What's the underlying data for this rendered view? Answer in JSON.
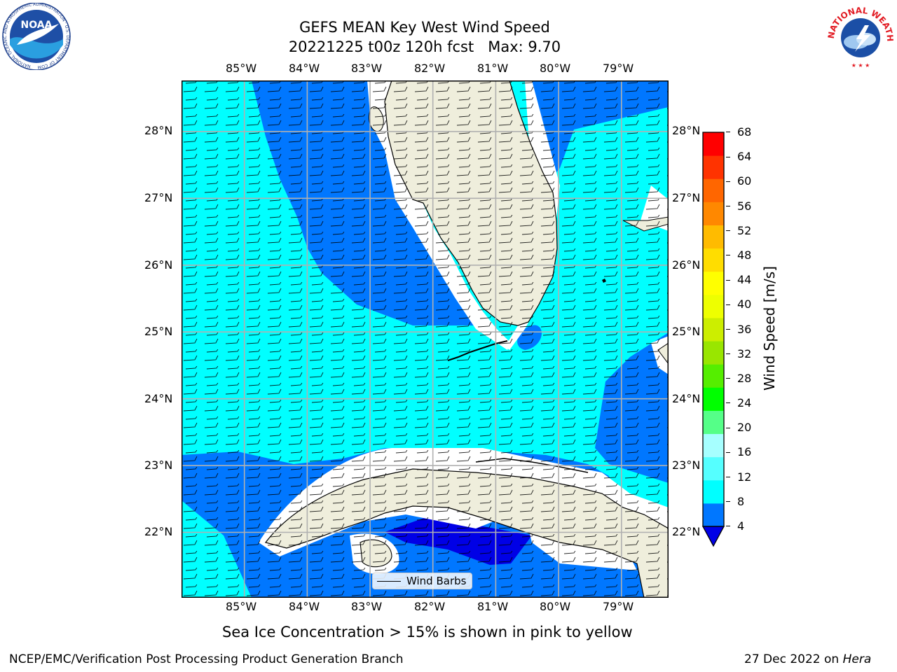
{
  "title": {
    "line1": "GEFS MEAN Key West Wind Speed",
    "line2": "20221225 t00z 120h fcst   Max: 9.70"
  },
  "map": {
    "lon_ticks": [
      "85°W",
      "84°W",
      "83°W",
      "82°W",
      "81°W",
      "80°W",
      "79°W"
    ],
    "lat_ticks": [
      "28°N",
      "27°N",
      "26°N",
      "25°N",
      "24°N",
      "23°N",
      "22°N"
    ],
    "lon_range": [
      -86.0,
      -78.25
    ],
    "lat_range": [
      21.1,
      28.8
    ],
    "legend_label": "Wind Barbs",
    "colors": {
      "land": "#efeedc",
      "band_4_8": "#0077ff",
      "band_8_12": "#00ffff",
      "below_4": "#0000e6",
      "grid": "#b0b0b0"
    }
  },
  "colorbar": {
    "label": "Wind Speed [m/s]",
    "ticks": [
      "68",
      "64",
      "60",
      "56",
      "52",
      "48",
      "44",
      "40",
      "36",
      "32",
      "28",
      "24",
      "20",
      "16",
      "12",
      "8",
      "4"
    ],
    "colors": [
      "#0077ff",
      "#00ffff",
      "#55ffff",
      "#a6ffff",
      "#55ff88",
      "#00ff00",
      "#55ee00",
      "#99e600",
      "#ccee00",
      "#eeff00",
      "#ffff00",
      "#ffdd00",
      "#ffbb00",
      "#ff8800",
      "#ff6600",
      "#ff3300",
      "#ff0000"
    ],
    "under_color": "#0000e6"
  },
  "caption": "Sea Ice Concentration > 15% is shown in pink to yellow",
  "footer": {
    "left": "NCEP/EMC/Verification Post Processing Product Generation Branch",
    "date": "27 Dec 2022 on",
    "machine": "Hera"
  },
  "logos": {
    "noaa_text": "NOAA",
    "noaa_ring": "NATIONAL OCEANIC AND ATMOSPHERIC ADMINISTRATION · U.S. DEPARTMENT OF COMMERCE",
    "nws_ring": "NATIONAL WEATHER SERVICE"
  }
}
